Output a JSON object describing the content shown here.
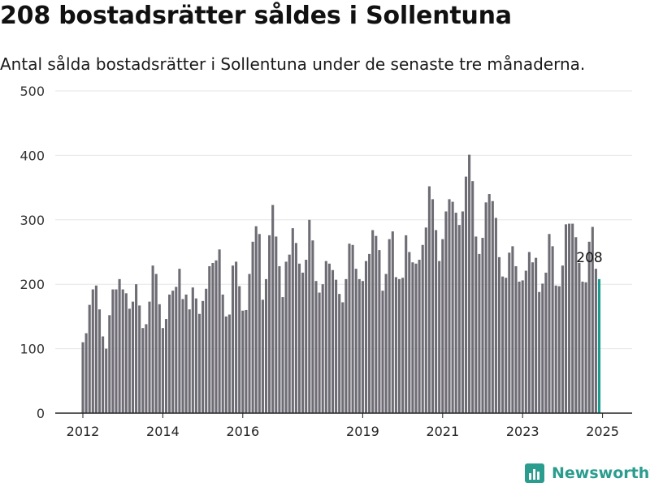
{
  "title": "208 bostadsrätter såldes i Sollentuna",
  "subtitle": "Antal sålda bostadsrätter i Sollentuna under de senaste tre månaderna.",
  "brand": "Newsworthy",
  "icons": {
    "brand_logo": "bar-chart-logo-icon"
  },
  "colors": {
    "bar": "#6e6c74",
    "highlight": "#1f9a8e",
    "grid": "#e6e6e6",
    "brand": "#2a9d8f"
  },
  "chart_data": {
    "type": "bar",
    "title": "208 bostadsrätter såldes i Sollentuna",
    "subtitle": "Antal sålda bostadsrätter i Sollentuna under de senaste tre månaderna.",
    "xlabel": "",
    "ylabel": "",
    "ylim": [
      0,
      500
    ],
    "yticks": [
      0,
      100,
      200,
      300,
      400,
      500
    ],
    "xticks": [
      {
        "label": "2012",
        "index": 0
      },
      {
        "label": "2014",
        "index": 24
      },
      {
        "label": "2016",
        "index": 48
      },
      {
        "label": "2019",
        "index": 84
      },
      {
        "label": "2021",
        "index": 108
      },
      {
        "label": "2023",
        "index": 132
      },
      {
        "label": "2025",
        "index": 156
      }
    ],
    "grid": true,
    "highlight_label": "208",
    "values": [
      110,
      124,
      168,
      192,
      198,
      161,
      119,
      100,
      152,
      192,
      192,
      208,
      192,
      186,
      162,
      173,
      200,
      167,
      132,
      138,
      173,
      229,
      216,
      169,
      132,
      146,
      184,
      190,
      196,
      224,
      177,
      184,
      161,
      195,
      178,
      154,
      174,
      193,
      228,
      233,
      237,
      254,
      184,
      150,
      153,
      229,
      235,
      197,
      159,
      160,
      216,
      266,
      290,
      278,
      176,
      208,
      276,
      323,
      274,
      228,
      180,
      235,
      246,
      287,
      264,
      232,
      218,
      238,
      300,
      268,
      205,
      187,
      200,
      236,
      232,
      222,
      207,
      185,
      172,
      208,
      263,
      261,
      224,
      208,
      205,
      236,
      247,
      284,
      275,
      253,
      190,
      216,
      270,
      282,
      211,
      208,
      210,
      276,
      250,
      234,
      232,
      238,
      261,
      288,
      352,
      332,
      284,
      236,
      270,
      313,
      332,
      328,
      311,
      292,
      313,
      367,
      401,
      360,
      274,
      247,
      272,
      327,
      340,
      329,
      303,
      242,
      212,
      210,
      249,
      259,
      228,
      204,
      206,
      221,
      250,
      234,
      241,
      188,
      201,
      218,
      278,
      259,
      198,
      197,
      229,
      293,
      294,
      294,
      273,
      233,
      204,
      203,
      266,
      289,
      224,
      208
    ]
  }
}
